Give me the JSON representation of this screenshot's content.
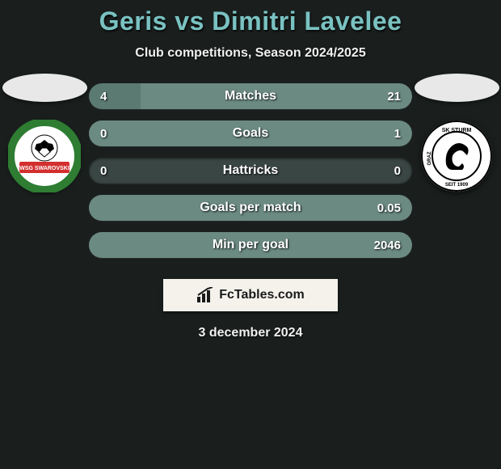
{
  "title": "Geris vs Dimitri Lavelee",
  "subtitle": "Club competitions, Season 2024/2025",
  "footer_brand": "FcTables.com",
  "footer_date": "3 december 2024",
  "background_color": "#1a1f1e",
  "title_color": "#7ac2c2",
  "left_fill_color": "#5b7a72",
  "right_fill_color": "#6b8a82",
  "track_color": "#3a4644",
  "badge_bg": "#f4f2eb",
  "players": {
    "left": {
      "club_name": "WSG Swarovski Wattens",
      "badge_bg": "#ffffff",
      "badge_ring": "#2e7d32",
      "badge_text_bg": "#d32f2f"
    },
    "right": {
      "club_name": "SK Sturm Graz",
      "badge_bg": "#ffffff",
      "badge_ring": "#000000"
    }
  },
  "stats": [
    {
      "label": "Matches",
      "left_value": "4",
      "right_value": "21",
      "left_pct": 16,
      "right_pct": 84
    },
    {
      "label": "Goals",
      "left_value": "0",
      "right_value": "1",
      "left_pct": 0,
      "right_pct": 100
    },
    {
      "label": "Hattricks",
      "left_value": "0",
      "right_value": "0",
      "left_pct": 0,
      "right_pct": 0
    },
    {
      "label": "Goals per match",
      "left_value": "",
      "right_value": "0.05",
      "left_pct": 0,
      "right_pct": 100
    },
    {
      "label": "Min per goal",
      "left_value": "",
      "right_value": "2046",
      "left_pct": 0,
      "right_pct": 100
    }
  ]
}
